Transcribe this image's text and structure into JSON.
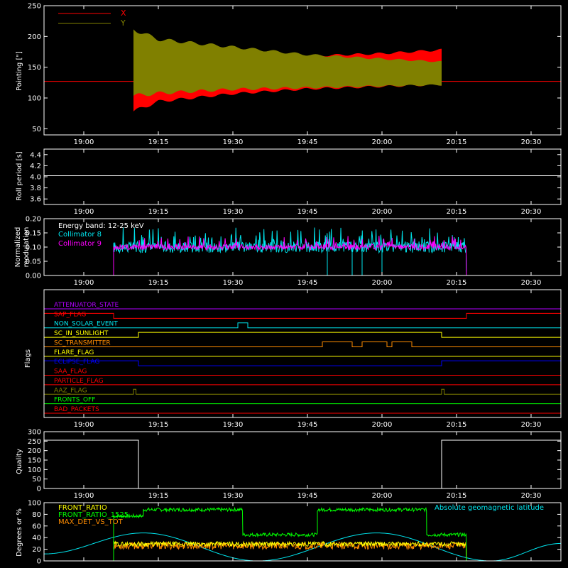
{
  "colors": {
    "background": "#000000",
    "axes": "#ffffff",
    "x_pointing": "#ff0000",
    "y_pointing": "#808000",
    "coll8": "#00e5ee",
    "coll9": "#ff00ff",
    "front_ratio": "#ffff00",
    "front_ratio_green": "#00ff00",
    "max_det": "#ff8c00",
    "geomag": "#00e5ee"
  },
  "time_axis": {
    "range": [
      "18:52",
      "20:36"
    ],
    "ticks": [
      "19:00",
      "19:15",
      "19:30",
      "19:45",
      "20:00",
      "20:15",
      "20:30"
    ]
  },
  "chart_data": [
    {
      "type": "area",
      "ylabel": "Pointing [\"]",
      "ylim": [
        40,
        250
      ],
      "yticks": [
        "50",
        "100",
        "150",
        "200",
        "250"
      ],
      "legend": {
        "position": "top-left",
        "entries": [
          "X",
          "Y"
        ]
      },
      "series": [
        {
          "name": "X",
          "color": "#ff0000",
          "segments": [
            {
              "x": [
                "18:52",
                "19:10"
              ],
              "y": [
                127,
                127
              ]
            },
            {
              "x": [
                "19:10",
                "19:15",
                "19:30",
                "19:45",
                "20:00",
                "20:12"
              ],
              "y_min": [
                75,
                92,
                105,
                113,
                117,
                120
              ],
              "y_max": [
                178,
                170,
                168,
                170,
                174,
                180
              ]
            },
            {
              "x": [
                "20:12",
                "20:36"
              ],
              "y": [
                127,
                127
              ]
            }
          ]
        },
        {
          "name": "Y",
          "color": "#808000",
          "segments": [
            {
              "x": [
                "19:10",
                "19:15",
                "19:30",
                "19:45",
                "20:00",
                "20:12"
              ],
              "y_min": [
                100,
                105,
                112,
                115,
                118,
                120
              ],
              "y_max": [
                215,
                198,
                185,
                172,
                165,
                160
              ]
            }
          ]
        }
      ]
    },
    {
      "type": "line",
      "ylabel": "Roll period [s]",
      "ylim": [
        3.5,
        4.5
      ],
      "yticks": [
        "3.6",
        "3.8",
        "4.0",
        "4.2",
        "4.4"
      ],
      "series": [
        {
          "x": [
            "18:52",
            "20:36"
          ],
          "y": [
            4.02,
            4.02
          ]
        }
      ]
    },
    {
      "type": "line",
      "ylabel": "Normalized modulation",
      "ylim": [
        0,
        0.2
      ],
      "yticks": [
        "0.00",
        "0.05",
        "0.10",
        "0.15",
        "0.20"
      ],
      "annotation": "Energy band: 12-25 keV",
      "series": [
        {
          "name": "Collimator 8",
          "start": "19:06",
          "end": "20:17",
          "typical": [
            0.08,
            0.12
          ],
          "spikes": 0.17
        },
        {
          "name": "Collimator 9",
          "start": "19:06",
          "end": "20:17",
          "typical": [
            0.09,
            0.11
          ],
          "spikes": 0.14
        }
      ],
      "dropouts": [
        "19:49",
        "19:54",
        "19:56",
        "20:00"
      ]
    },
    {
      "type": "line",
      "ylabel": "Flags",
      "flags": [
        {
          "name": "ATTENUATOR_STATE",
          "color": "#b000ff",
          "high": []
        },
        {
          "name": "SAP_FLAG",
          "color": "#ff0000",
          "high": [
            [
              "18:52",
              "19:06"
            ],
            [
              "20:17",
              "20:36"
            ]
          ]
        },
        {
          "name": "NON_SOLAR_EVENT",
          "color": "#00e5ee",
          "high": [
            [
              "19:31",
              "19:33"
            ]
          ]
        },
        {
          "name": "SC_IN_SUNLIGHT",
          "color": "#ffff00",
          "high": [
            [
              "19:11",
              "20:12"
            ]
          ]
        },
        {
          "name": "SC_TRANSMITTER",
          "color": "#ff8c00",
          "high": [
            [
              "19:48",
              "19:54"
            ],
            [
              "19:56",
              "20:01"
            ],
            [
              "20:02",
              "20:06"
            ]
          ]
        },
        {
          "name": "FLARE_FLAG",
          "color": "#ffff00",
          "high": []
        },
        {
          "name": "ECLIPSE_FLAG",
          "color": "#0000ff",
          "high": [
            [
              "18:52",
              "19:11"
            ],
            [
              "20:12",
              "20:36"
            ]
          ]
        },
        {
          "name": "SAA_FLAG",
          "color": "#ff0000",
          "high": []
        },
        {
          "name": "PARTICLE_FLAG",
          "color": "#ff0000",
          "high": []
        },
        {
          "name": "AAZ_FLAG",
          "color": "#808000",
          "high": [
            [
              "19:10",
              "19:10.5"
            ],
            [
              "20:12",
              "20:12.5"
            ]
          ]
        },
        {
          "name": "FRONTS_OFF",
          "color": "#00ff00",
          "high": []
        },
        {
          "name": "BAD_PACKETS",
          "color": "#ff0000",
          "high": []
        }
      ]
    },
    {
      "type": "line",
      "ylabel": "Quality",
      "ylim": [
        0,
        300
      ],
      "yticks": [
        "0",
        "50",
        "100",
        "150",
        "200",
        "250",
        "300"
      ],
      "series": [
        {
          "x": [
            "18:52",
            "19:11",
            "19:11",
            "20:12",
            "20:12",
            "20:36"
          ],
          "y": [
            255,
            255,
            0,
            0,
            255,
            255
          ]
        }
      ]
    },
    {
      "type": "line",
      "ylabel": "Degrees or %",
      "ylim": [
        0,
        100
      ],
      "yticks": [
        "0",
        "20",
        "40",
        "60",
        "80",
        "100"
      ],
      "legend": {
        "position": "top-left",
        "entries": [
          "FRONT_RATIO",
          "FRONT_RATIO_1525",
          "MAX_DET_VS_TOT"
        ]
      },
      "right_label": "Absolute geomagnetic latitude",
      "series": [
        {
          "name": "FRONT_RATIO",
          "color": "#ffff00",
          "start": "19:06",
          "end": "20:17",
          "typical": [
            25,
            33
          ]
        },
        {
          "name": "FRONT_RATIO_1525",
          "color": "#00ff00",
          "levels": [
            {
              "x": [
                "19:06",
                "19:12"
              ],
              "y": 77
            },
            {
              "x": [
                "19:12",
                "19:32"
              ],
              "y": 88
            },
            {
              "x": [
                "19:32",
                "19:47"
              ],
              "y": 45
            },
            {
              "x": [
                "19:47",
                "20:09"
              ],
              "y": 88
            },
            {
              "x": [
                "20:09",
                "20:17"
              ],
              "y": 45
            }
          ]
        },
        {
          "name": "MAX_DET_VS_TOT",
          "color": "#ff8c00",
          "start": "19:06",
          "end": "20:17",
          "typical": [
            20,
            32
          ]
        },
        {
          "name": "Absolute geomagnetic latitude",
          "color": "#00e5ee",
          "x": [
            "18:52",
            "19:12",
            "19:35",
            "19:59",
            "20:22",
            "20:36"
          ],
          "y": [
            12,
            48,
            0,
            48,
            0,
            30
          ]
        }
      ]
    }
  ]
}
